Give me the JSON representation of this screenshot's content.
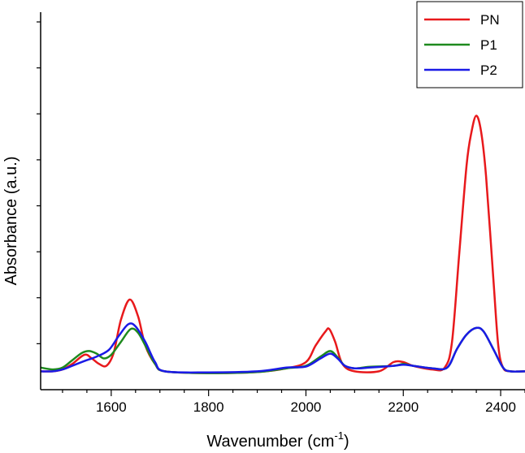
{
  "chart_data": {
    "type": "line",
    "xlabel_main": "Wavenumber (cm",
    "xlabel_sup": "-1",
    "xlabel_end": ")",
    "ylabel": "Absorbance (a.u.)",
    "xlim": [
      1455,
      2450
    ],
    "ylim": [
      0,
      1
    ],
    "x_ticks": [
      1600,
      1800,
      2000,
      2200,
      2400
    ],
    "x_tick_labels": [
      "1600",
      "1800",
      "2000",
      "2200",
      "2400"
    ],
    "y_ticklabels_shown": false,
    "grid": false,
    "legend_position": "top-right",
    "series": [
      {
        "name": "PN",
        "color": "#e8191c",
        "points": [
          [
            1455,
            0.05
          ],
          [
            1480,
            0.05
          ],
          [
            1500,
            0.055
          ],
          [
            1520,
            0.07
          ],
          [
            1545,
            0.095
          ],
          [
            1560,
            0.085
          ],
          [
            1575,
            0.07
          ],
          [
            1590,
            0.065
          ],
          [
            1605,
            0.1
          ],
          [
            1620,
            0.19
          ],
          [
            1638,
            0.245
          ],
          [
            1655,
            0.2
          ],
          [
            1670,
            0.12
          ],
          [
            1690,
            0.07
          ],
          [
            1710,
            0.05
          ],
          [
            1800,
            0.045
          ],
          [
            1900,
            0.048
          ],
          [
            1960,
            0.058
          ],
          [
            2000,
            0.075
          ],
          [
            2020,
            0.12
          ],
          [
            2040,
            0.158
          ],
          [
            2048,
            0.165
          ],
          [
            2060,
            0.13
          ],
          [
            2075,
            0.07
          ],
          [
            2100,
            0.05
          ],
          [
            2150,
            0.05
          ],
          [
            2180,
            0.075
          ],
          [
            2200,
            0.075
          ],
          [
            2220,
            0.065
          ],
          [
            2260,
            0.055
          ],
          [
            2285,
            0.06
          ],
          [
            2300,
            0.13
          ],
          [
            2315,
            0.37
          ],
          [
            2330,
            0.61
          ],
          [
            2340,
            0.7
          ],
          [
            2350,
            0.745
          ],
          [
            2360,
            0.7
          ],
          [
            2370,
            0.58
          ],
          [
            2385,
            0.3
          ],
          [
            2395,
            0.12
          ],
          [
            2405,
            0.06
          ],
          [
            2420,
            0.05
          ],
          [
            2450,
            0.05
          ]
        ]
      },
      {
        "name": "P1",
        "color": "#1e8a1e",
        "points": [
          [
            1455,
            0.06
          ],
          [
            1480,
            0.055
          ],
          [
            1500,
            0.06
          ],
          [
            1520,
            0.08
          ],
          [
            1540,
            0.1
          ],
          [
            1555,
            0.105
          ],
          [
            1570,
            0.098
          ],
          [
            1585,
            0.085
          ],
          [
            1600,
            0.095
          ],
          [
            1620,
            0.13
          ],
          [
            1640,
            0.165
          ],
          [
            1655,
            0.155
          ],
          [
            1670,
            0.12
          ],
          [
            1690,
            0.07
          ],
          [
            1710,
            0.05
          ],
          [
            1800,
            0.045
          ],
          [
            1900,
            0.048
          ],
          [
            1960,
            0.058
          ],
          [
            2000,
            0.065
          ],
          [
            2030,
            0.09
          ],
          [
            2050,
            0.105
          ],
          [
            2065,
            0.088
          ],
          [
            2080,
            0.065
          ],
          [
            2100,
            0.058
          ],
          [
            2130,
            0.062
          ],
          [
            2180,
            0.065
          ],
          [
            2200,
            0.07
          ],
          [
            2220,
            0.065
          ],
          [
            2260,
            0.058
          ],
          [
            2290,
            0.06
          ],
          [
            2310,
            0.11
          ],
          [
            2330,
            0.15
          ],
          [
            2350,
            0.168
          ],
          [
            2365,
            0.158
          ],
          [
            2385,
            0.11
          ],
          [
            2405,
            0.06
          ],
          [
            2420,
            0.05
          ],
          [
            2450,
            0.05
          ]
        ]
      },
      {
        "name": "P2",
        "color": "#1a1ae6",
        "points": [
          [
            1455,
            0.05
          ],
          [
            1480,
            0.05
          ],
          [
            1500,
            0.055
          ],
          [
            1520,
            0.065
          ],
          [
            1545,
            0.078
          ],
          [
            1570,
            0.09
          ],
          [
            1595,
            0.108
          ],
          [
            1615,
            0.145
          ],
          [
            1635,
            0.178
          ],
          [
            1650,
            0.172
          ],
          [
            1670,
            0.13
          ],
          [
            1690,
            0.075
          ],
          [
            1710,
            0.05
          ],
          [
            1800,
            0.047
          ],
          [
            1900,
            0.05
          ],
          [
            1960,
            0.06
          ],
          [
            2000,
            0.063
          ],
          [
            2030,
            0.085
          ],
          [
            2050,
            0.098
          ],
          [
            2065,
            0.085
          ],
          [
            2080,
            0.065
          ],
          [
            2100,
            0.058
          ],
          [
            2130,
            0.06
          ],
          [
            2180,
            0.065
          ],
          [
            2200,
            0.068
          ],
          [
            2220,
            0.065
          ],
          [
            2260,
            0.058
          ],
          [
            2290,
            0.06
          ],
          [
            2310,
            0.11
          ],
          [
            2330,
            0.15
          ],
          [
            2350,
            0.168
          ],
          [
            2365,
            0.158
          ],
          [
            2385,
            0.11
          ],
          [
            2405,
            0.06
          ],
          [
            2420,
            0.05
          ],
          [
            2450,
            0.05
          ]
        ]
      }
    ]
  }
}
